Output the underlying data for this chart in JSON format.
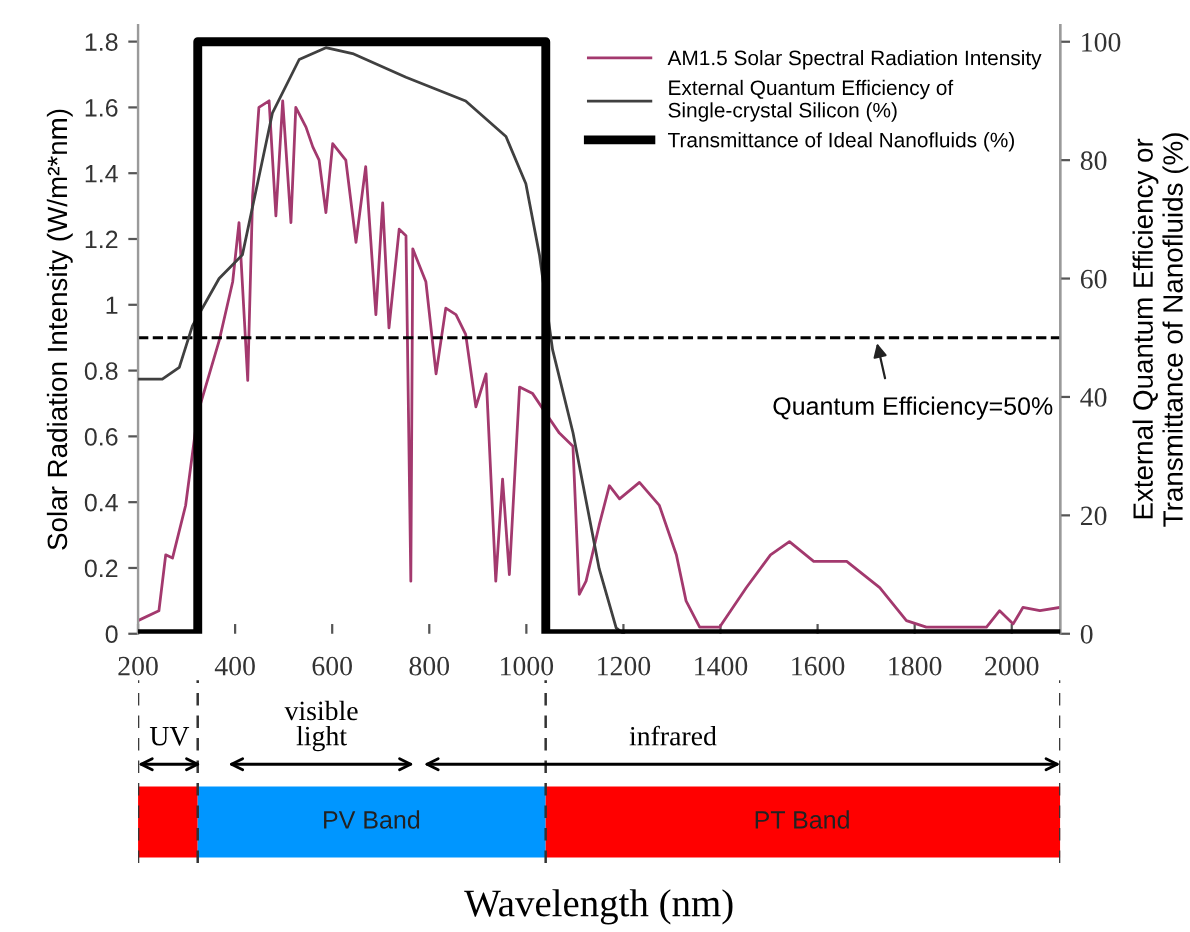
{
  "chart_data": {
    "type": "line",
    "ylabel": "Solar Radiation Intensity (W/m²*nm)",
    "y2label": "External Quantum Efficiency or\nTransmittance of Nanofluids (%)",
    "xlim": [
      200,
      2100
    ],
    "xticks": [
      200,
      400,
      600,
      800,
      1000,
      1200,
      1400,
      1600,
      1800,
      2000
    ],
    "ylim": [
      0,
      1.85
    ],
    "yticks": [
      0,
      0.2,
      0.4,
      0.6,
      0.8,
      1,
      1.2,
      1.4,
      1.6,
      1.8
    ],
    "y2lim": [
      0,
      102.8
    ],
    "y2ticks": [
      0,
      20,
      40,
      60,
      80,
      100
    ],
    "grid": false,
    "legend": "top right",
    "marker": "none",
    "series": [
      {
        "name": "AM1.5 Solar Spectral Radiation Intensity",
        "color": "#a3396e",
        "x": [
          200,
          243,
          257,
          271,
          298,
          323,
          367,
          395,
          408,
          426,
          436,
          449,
          470,
          484,
          498,
          515,
          525,
          546,
          560,
          573,
          587,
          601,
          628,
          649,
          669,
          690,
          704,
          717,
          738,
          752,
          762,
          766,
          793,
          814,
          834,
          855,
          875,
          896,
          917,
          937,
          951,
          965,
          986,
          1013,
          1040,
          1068,
          1096,
          1109,
          1123,
          1150,
          1171,
          1192,
          1233,
          1274,
          1309,
          1329,
          1357,
          1398,
          1453,
          1503,
          1542,
          1592,
          1660,
          1728,
          1783,
          1824,
          1948,
          1975,
          2003,
          2023,
          2058,
          2099
        ],
        "values": [
          0.04,
          0.07,
          0.24,
          0.23,
          0.39,
          0.67,
          0.89,
          1.07,
          1.25,
          0.77,
          1.33,
          1.6,
          1.62,
          1.27,
          1.62,
          1.25,
          1.6,
          1.54,
          1.48,
          1.44,
          1.28,
          1.49,
          1.44,
          1.19,
          1.42,
          0.97,
          1.31,
          0.93,
          1.23,
          1.21,
          0.16,
          1.17,
          1.07,
          0.79,
          0.99,
          0.97,
          0.91,
          0.69,
          0.79,
          0.16,
          0.47,
          0.18,
          0.75,
          0.73,
          0.67,
          0.61,
          0.57,
          0.12,
          0.16,
          0.33,
          0.45,
          0.41,
          0.46,
          0.39,
          0.24,
          0.1,
          0.02,
          0.02,
          0.14,
          0.24,
          0.28,
          0.22,
          0.22,
          0.14,
          0.04,
          0.02,
          0.02,
          0.07,
          0.03,
          0.08,
          0.07,
          0.08
        ]
      },
      {
        "name": "External Quantum Efficiency of\nSingle-crystal Silicon (%)",
        "axis": "y2",
        "color": "#404040",
        "x": [
          200,
          250,
          285,
          312,
          367,
          415,
          477,
          532,
          587,
          642,
          752,
          875,
          958,
          999,
          1027,
          1054,
          1096,
          1150,
          1185,
          1200
        ],
        "values": [
          43,
          43,
          45,
          52,
          60,
          64,
          88,
          97,
          99,
          98,
          94,
          90,
          84,
          76,
          64,
          48,
          34,
          11,
          1,
          0
        ]
      },
      {
        "name": "Transmittance of Ideal Nanofluids (%)",
        "type": "step",
        "axis": "y2",
        "color": "#000000",
        "x": [
          200,
          323,
          1040,
          2100
        ],
        "values": [
          0,
          100,
          0,
          0
        ]
      }
    ],
    "ref_lines": [
      {
        "axis": "y2",
        "value": 50,
        "color": "#000000",
        "line_style": "dashed"
      }
    ],
    "annotations": [
      "Quantum Efficiency=50%",
      "UV",
      "visible\nlight",
      "infrared",
      "PV Band",
      "PT Band",
      "Wavelength (nm)"
    ]
  }
}
